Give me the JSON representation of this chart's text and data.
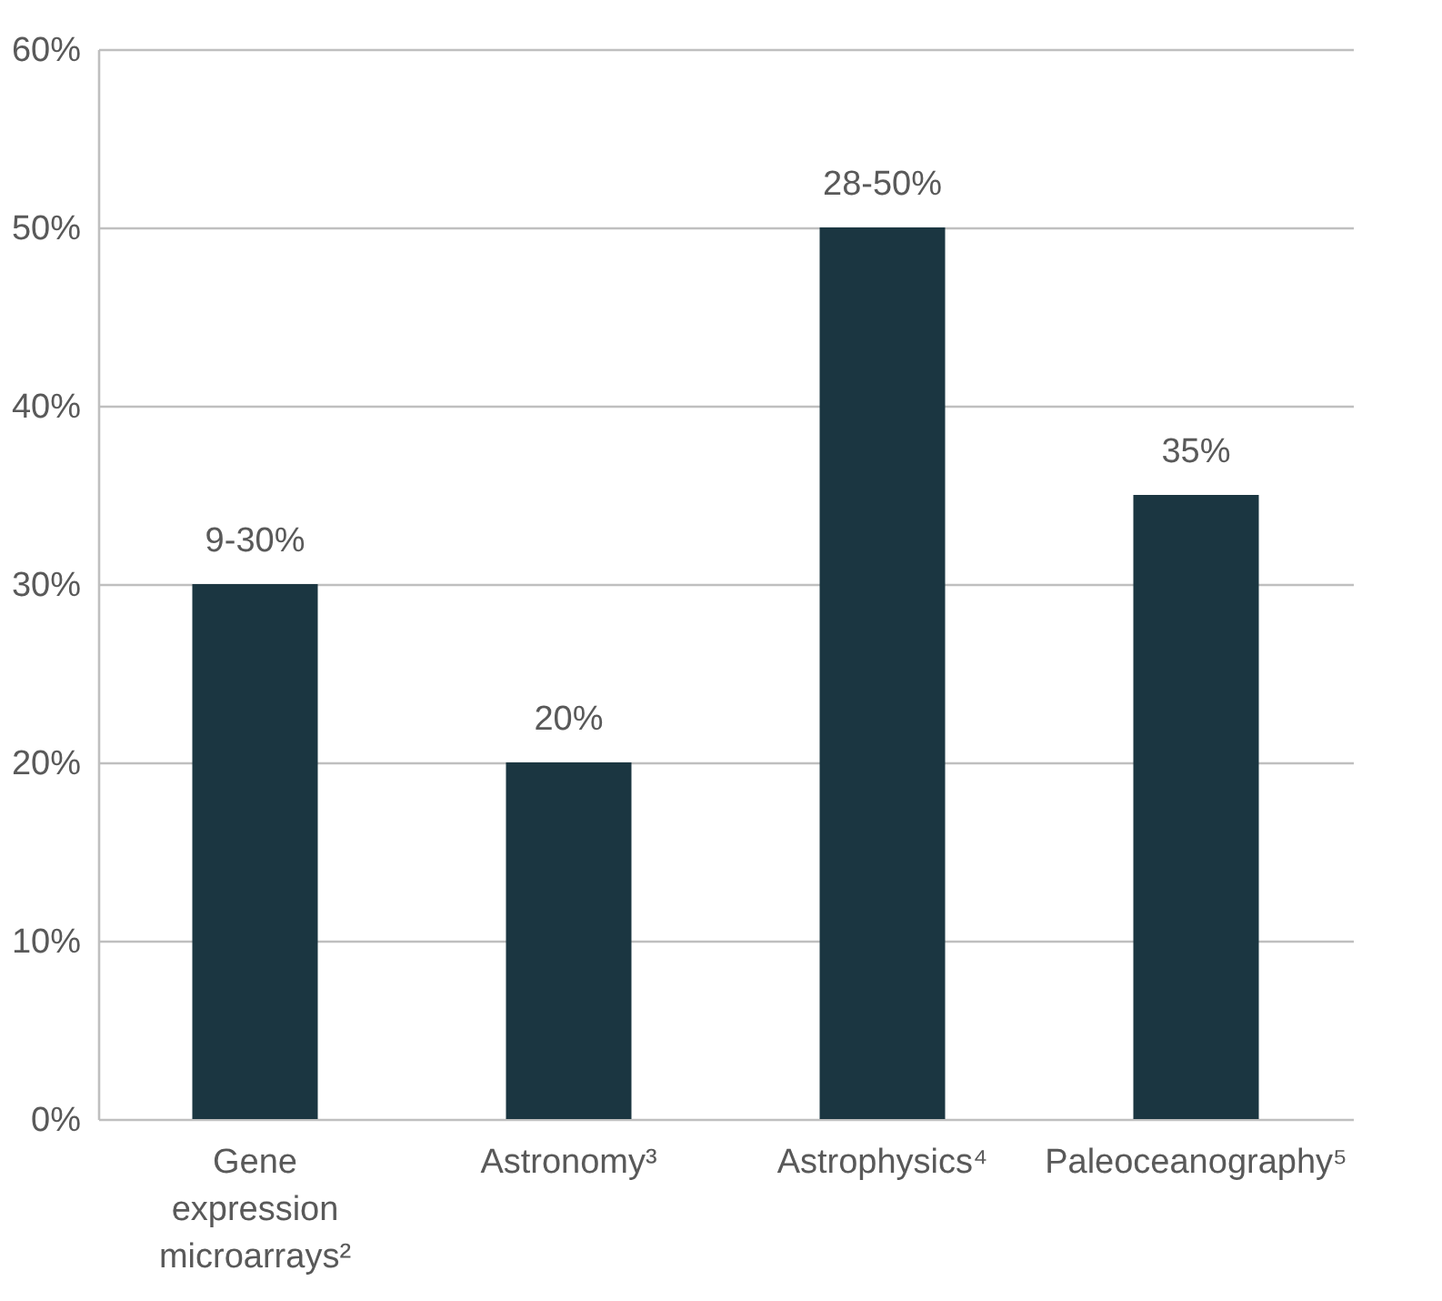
{
  "chart_data": {
    "type": "bar",
    "categories": [
      "Gene expression microarrays²",
      "Astronomy³",
      "Astrophysics⁴",
      "Paleoceanography⁵"
    ],
    "values": [
      30,
      20,
      50,
      35
    ],
    "annotations": [
      {
        "text": "9-30%",
        "x": "Gene expression microarrays²",
        "y": 30
      },
      {
        "text": "20%",
        "x": "Astronomy³",
        "y": 20
      },
      {
        "text": "28-50%",
        "x": "Astrophysics⁴",
        "y": 50
      },
      {
        "text": "35%",
        "x": "Paleoceanography⁵",
        "y": 35
      }
    ],
    "color": "#1b3641",
    "ylim": [
      0,
      60
    ],
    "yticks": [
      {
        "value": 0,
        "label": "0%"
      },
      {
        "value": 10,
        "label": "10%"
      },
      {
        "value": 20,
        "label": "20%"
      },
      {
        "value": 30,
        "label": "30%"
      },
      {
        "value": 40,
        "label": "40%"
      },
      {
        "value": 50,
        "label": "50%"
      },
      {
        "value": 60,
        "label": "60%"
      }
    ],
    "grid": "y"
  }
}
